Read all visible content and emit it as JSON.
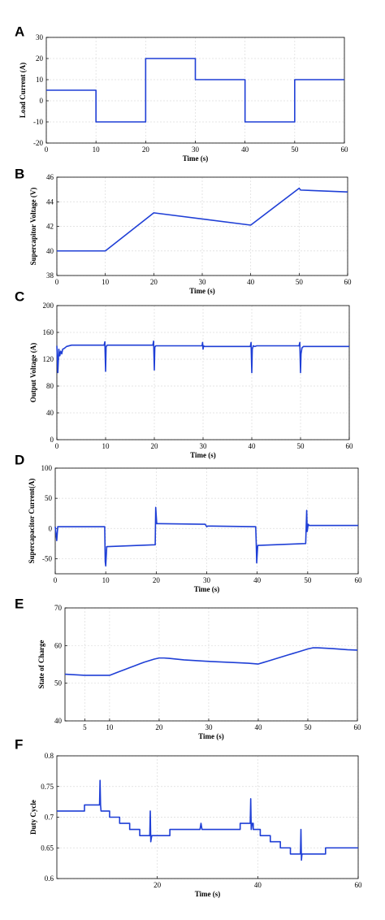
{
  "chart_data": [
    {
      "letter": "A",
      "type": "line",
      "title": "",
      "xlabel": "Time (s)",
      "ylabel": "Load Current (A)",
      "xlim": [
        0,
        60
      ],
      "ylim": [
        -20,
        30
      ],
      "xticks": [
        0,
        10,
        20,
        30,
        40,
        50,
        60
      ],
      "yticks": [
        -20,
        -10,
        0,
        10,
        20,
        30
      ],
      "grid": true,
      "series": [
        {
          "color": "#1f3fd6",
          "x": [
            0,
            10,
            10,
            20,
            20,
            30,
            30,
            40,
            40,
            50,
            50,
            60
          ],
          "y": [
            5,
            5,
            -10,
            -10,
            20,
            20,
            10,
            10,
            -10,
            -10,
            10,
            10
          ]
        }
      ]
    },
    {
      "letter": "B",
      "type": "line",
      "title": "",
      "xlabel": "Time (s)",
      "ylabel": "Supercapitor Voltage (V)",
      "xlim": [
        0,
        60
      ],
      "ylim": [
        38,
        46
      ],
      "xticks": [
        0,
        10,
        20,
        30,
        40,
        50,
        60
      ],
      "yticks": [
        38,
        40,
        42,
        44,
        46
      ],
      "grid": true,
      "series": [
        {
          "color": "#1f3fd6",
          "x": [
            0,
            10,
            20,
            40,
            50,
            50.3,
            60
          ],
          "y": [
            40,
            40,
            43.1,
            42.1,
            45.1,
            44.95,
            44.8
          ]
        }
      ]
    },
    {
      "letter": "C",
      "type": "line",
      "title": "",
      "xlabel": "Time (s)",
      "ylabel": "Output Voltage (A)",
      "xlim": [
        0,
        60
      ],
      "ylim": [
        0,
        200
      ],
      "xticks": [
        0,
        10,
        20,
        30,
        40,
        50,
        60
      ],
      "yticks": [
        0,
        40,
        80,
        120,
        160,
        200
      ],
      "grid": true,
      "series": [
        {
          "color": "#1f3fd6",
          "x": [
            0,
            0.2,
            0.4,
            0.6,
            0.8,
            1.0,
            1.2,
            1.5,
            2,
            3,
            9.7,
            9.85,
            10,
            10.1,
            10.3,
            10.6,
            11,
            19.7,
            19.85,
            20,
            20.1,
            20.3,
            20.6,
            21,
            29.8,
            29.9,
            30,
            30.1,
            30.3,
            30.6,
            31,
            39.7,
            39.85,
            40,
            40.1,
            40.3,
            40.6,
            41,
            49.7,
            49.85,
            50,
            50.1,
            50.3,
            50.6,
            51,
            60
          ],
          "y": [
            140,
            100,
            135,
            125,
            132,
            128,
            135,
            136,
            139,
            141,
            141,
            146,
            102,
            138,
            141,
            141,
            141,
            141,
            147,
            104,
            138,
            140,
            140,
            140,
            140,
            145,
            135,
            140,
            139,
            139,
            139,
            139,
            145,
            100,
            135,
            140,
            139,
            140,
            140,
            145,
            100,
            128,
            137,
            139,
            139,
            139
          ]
        }
      ]
    },
    {
      "letter": "D",
      "type": "line",
      "title": "",
      "xlabel": "Time (s)",
      "ylabel": "Supercapacitor Current(A)",
      "xlim": [
        0,
        60
      ],
      "ylim": [
        -75,
        100
      ],
      "xticks": [
        0,
        10,
        20,
        30,
        40,
        50,
        60
      ],
      "yticks": [
        -50,
        0,
        50,
        100
      ],
      "grid": true,
      "series": [
        {
          "color": "#1f3fd6",
          "x": [
            0,
            0.3,
            0.5,
            1,
            9.8,
            9.9,
            10,
            10.2,
            10.4,
            19.7,
            19.8,
            19.9,
            20.1,
            20.3,
            29.7,
            30,
            30.2,
            31,
            39.7,
            39.8,
            39.9,
            40.1,
            40.3,
            49.5,
            49.6,
            49.8,
            49.9,
            50.1,
            50.3,
            60
          ],
          "y": [
            3,
            -20,
            3,
            3,
            3,
            -55,
            -62,
            -30,
            -30,
            -27,
            -27,
            35,
            8,
            8,
            7,
            3,
            4,
            4,
            3,
            -22,
            -57,
            -28,
            -28,
            -25,
            -25,
            30,
            -5,
            7,
            5,
            5
          ]
        }
      ]
    },
    {
      "letter": "E",
      "type": "line",
      "title": "",
      "xlabel": "Time (s)",
      "ylabel": "State of Charge",
      "xlim": [
        1,
        60
      ],
      "ylim": [
        40,
        70
      ],
      "xticks": [
        5,
        10,
        20,
        30,
        40,
        50,
        60
      ],
      "yticks": [
        40,
        50,
        60,
        70
      ],
      "grid": true,
      "series": [
        {
          "color": "#1f3fd6",
          "x": [
            1,
            5,
            10,
            11,
            12,
            13,
            14,
            15,
            16,
            17,
            18,
            19,
            20,
            21,
            22,
            25,
            30,
            35,
            38,
            39,
            40,
            41,
            42,
            43,
            44,
            45,
            46,
            47,
            48,
            49,
            50,
            51,
            52,
            55,
            58,
            60
          ],
          "y": [
            52.4,
            52.1,
            52.1,
            52.6,
            53.1,
            53.6,
            54.1,
            54.6,
            55.1,
            55.6,
            56.0,
            56.4,
            56.7,
            56.7,
            56.6,
            56.2,
            55.8,
            55.5,
            55.3,
            55.2,
            55.1,
            55.5,
            55.9,
            56.3,
            56.7,
            57.1,
            57.5,
            57.9,
            58.3,
            58.7,
            59.1,
            59.4,
            59.4,
            59.2,
            58.9,
            58.8
          ]
        }
      ]
    },
    {
      "letter": "F",
      "type": "line",
      "title": "",
      "xlabel": "Time (s)",
      "ylabel": "Duty Cycle",
      "xlim": [
        0,
        60
      ],
      "ylim": [
        0.6,
        0.8
      ],
      "xticks": [
        20,
        40,
        60
      ],
      "yticks": [
        0.6,
        0.65,
        0.7,
        0.75,
        0.8
      ],
      "ytick_labels": [
        "0.6",
        "0.65",
        "0.7",
        "0.75",
        "0.8"
      ],
      "grid": true,
      "series": [
        {
          "color": "#1f3fd6",
          "x": [
            0,
            5.5,
            5.5,
            8.5,
            8.6,
            8.7,
            8.8,
            10.5,
            10.5,
            12.5,
            12.5,
            14.5,
            14.5,
            16.5,
            16.5,
            18.5,
            18.6,
            18.7,
            18.9,
            19.1,
            19.1,
            22.5,
            22.5,
            28.5,
            28.7,
            28.9,
            29.0,
            29.1,
            36.5,
            36.5,
            38.5,
            38.6,
            38.7,
            38.9,
            39.1,
            39.1,
            40.5,
            40.5,
            42.5,
            42.5,
            44.5,
            44.5,
            46.5,
            46.5,
            48.5,
            48.6,
            48.7,
            48.8,
            48.9,
            49.0,
            49.1,
            53.5,
            53.5,
            60
          ],
          "y": [
            0.71,
            0.71,
            0.72,
            0.72,
            0.76,
            0.72,
            0.71,
            0.71,
            0.7,
            0.7,
            0.69,
            0.69,
            0.68,
            0.68,
            0.67,
            0.67,
            0.71,
            0.66,
            0.67,
            0.67,
            0.67,
            0.67,
            0.68,
            0.68,
            0.69,
            0.68,
            0.68,
            0.68,
            0.68,
            0.69,
            0.69,
            0.73,
            0.68,
            0.69,
            0.69,
            0.68,
            0.68,
            0.67,
            0.67,
            0.66,
            0.66,
            0.65,
            0.65,
            0.64,
            0.64,
            0.68,
            0.63,
            0.64,
            0.64,
            0.64,
            0.64,
            0.64,
            0.65,
            0.65
          ]
        }
      ]
    }
  ]
}
